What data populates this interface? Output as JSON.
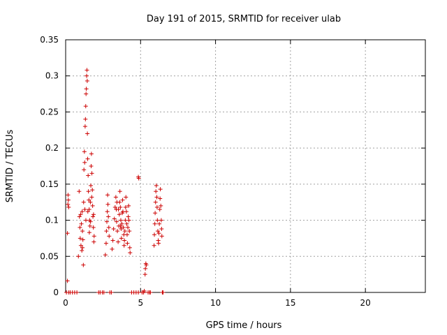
{
  "chart_data": {
    "type": "scatter",
    "title": "Day 191 of 2015, SRMTID for receiver ulab",
    "xlabel": "GPS time / hours",
    "ylabel": "SRMTID / TECUs",
    "xlim": [
      0,
      24
    ],
    "ylim": [
      0,
      0.35
    ],
    "xticks": [
      0,
      5,
      10,
      15,
      20
    ],
    "xtick_labels": [
      "0",
      "5",
      "10",
      "15",
      "20"
    ],
    "yticks": [
      0,
      0.05,
      0.1,
      0.15,
      0.2,
      0.25,
      0.3,
      0.35
    ],
    "ytick_labels": [
      "0",
      "0.05",
      "0.1",
      "0.15",
      "0.2",
      "0.25",
      "0.3",
      "0.35"
    ],
    "grid": true,
    "marker": "+",
    "series": [
      {
        "name": "SRMTID",
        "color": "#cc0000",
        "points": [
          [
            0.12,
            0.016
          ],
          [
            0.15,
            0.122
          ],
          [
            0.16,
            0.135
          ],
          [
            0.18,
            0.128
          ],
          [
            0.2,
            0.118
          ],
          [
            0.12,
            0.082
          ],
          [
            0.05,
            0
          ],
          [
            0.2,
            0
          ],
          [
            0.3,
            0
          ],
          [
            0.45,
            0
          ],
          [
            0.6,
            0
          ],
          [
            0.75,
            0
          ],
          [
            0.85,
            0.05
          ],
          [
            0.9,
            0.14
          ],
          [
            0.92,
            0.105
          ],
          [
            0.95,
            0.09
          ],
          [
            0.97,
            0.075
          ],
          [
            1.0,
            0.108
          ],
          [
            1.02,
            0.065
          ],
          [
            1.05,
            0.095
          ],
          [
            1.08,
            0.058
          ],
          [
            1.1,
            0.112
          ],
          [
            1.12,
            0.085
          ],
          [
            1.15,
            0.073
          ],
          [
            1.18,
            0.038
          ],
          [
            1.2,
            0.125
          ],
          [
            1.22,
            0.17
          ],
          [
            1.25,
            0.195
          ],
          [
            1.27,
            0.18
          ],
          [
            1.3,
            0.23
          ],
          [
            1.32,
            0.24
          ],
          [
            1.34,
            0.258
          ],
          [
            1.36,
            0.275
          ],
          [
            1.38,
            0.282
          ],
          [
            1.4,
            0.3
          ],
          [
            1.42,
            0.308
          ],
          [
            1.44,
            0.293
          ],
          [
            1.45,
            0.22
          ],
          [
            1.47,
            0.185
          ],
          [
            1.5,
            0.162
          ],
          [
            1.52,
            0.14
          ],
          [
            1.55,
            0.128
          ],
          [
            1.57,
            0.115
          ],
          [
            1.6,
            0.1
          ],
          [
            1.62,
            0.092
          ],
          [
            1.65,
            0.125
          ],
          [
            1.68,
            0.148
          ],
          [
            1.7,
            0.175
          ],
          [
            1.72,
            0.192
          ],
          [
            1.75,
            0.165
          ],
          [
            1.78,
            0.142
          ],
          [
            1.8,
            0.12
          ],
          [
            1.82,
            0.105
          ],
          [
            1.85,
            0.09
          ],
          [
            1.88,
            0.07
          ],
          [
            1.9,
            0.078
          ],
          [
            1.12,
            0.062
          ],
          [
            1.28,
            0.115
          ],
          [
            1.35,
            0.1
          ],
          [
            1.48,
            0.112
          ],
          [
            1.58,
            0.083
          ],
          [
            1.66,
            0.098
          ],
          [
            1.74,
            0.132
          ],
          [
            1.86,
            0.108
          ],
          [
            2.2,
            0
          ],
          [
            2.3,
            0
          ],
          [
            2.45,
            0
          ],
          [
            2.55,
            0
          ],
          [
            2.95,
            0
          ],
          [
            3.05,
            0
          ],
          [
            2.65,
            0.052
          ],
          [
            2.7,
            0.068
          ],
          [
            2.72,
            0.085
          ],
          [
            2.75,
            0.098
          ],
          [
            2.78,
            0.112
          ],
          [
            2.8,
            0.135
          ],
          [
            2.82,
            0.122
          ],
          [
            2.85,
            0.105
          ],
          [
            2.88,
            0.09
          ],
          [
            2.9,
            0.078
          ],
          [
            3.1,
            0.06
          ],
          [
            3.15,
            0.072
          ],
          [
            3.2,
            0.088
          ],
          [
            3.25,
            0.102
          ],
          [
            3.3,
            0.118
          ],
          [
            3.35,
            0.132
          ],
          [
            3.38,
            0.115
          ],
          [
            3.4,
            0.098
          ],
          [
            3.45,
            0.085
          ],
          [
            3.5,
            0.07
          ],
          [
            3.55,
            0.092
          ],
          [
            3.58,
            0.108
          ],
          [
            3.6,
            0.125
          ],
          [
            3.62,
            0.14
          ],
          [
            3.65,
            0.118
          ],
          [
            3.68,
            0.1
          ],
          [
            3.7,
            0.088
          ],
          [
            3.72,
            0.075
          ],
          [
            3.75,
            0.095
          ],
          [
            3.78,
            0.11
          ],
          [
            3.8,
            0.128
          ],
          [
            3.82,
            0.112
          ],
          [
            3.85,
            0.09
          ],
          [
            3.88,
            0.08
          ],
          [
            3.9,
            0.065
          ],
          [
            3.92,
            0.072
          ],
          [
            3.95,
            0.085
          ],
          [
            3.98,
            0.1
          ],
          [
            4.0,
            0.118
          ],
          [
            4.02,
            0.132
          ],
          [
            4.05,
            0.112
          ],
          [
            4.08,
            0.095
          ],
          [
            4.1,
            0.08
          ],
          [
            4.12,
            0.068
          ],
          [
            4.15,
            0.09
          ],
          [
            4.18,
            0.105
          ],
          [
            4.2,
            0.12
          ],
          [
            4.22,
            0.1
          ],
          [
            4.25,
            0.085
          ],
          [
            4.28,
            0.062
          ],
          [
            4.3,
            0.055
          ],
          [
            3.42,
            0.125
          ],
          [
            3.52,
            0.115
          ],
          [
            3.66,
            0.092
          ],
          [
            4.4,
            0
          ],
          [
            4.55,
            0
          ],
          [
            4.7,
            0
          ],
          [
            4.85,
            0
          ],
          [
            4.85,
            0.16
          ],
          [
            4.88,
            0.158
          ],
          [
            5.1,
            0
          ],
          [
            5.2,
            0
          ],
          [
            5.25,
            0.002
          ],
          [
            5.3,
            0.025
          ],
          [
            5.32,
            0.033
          ],
          [
            5.35,
            0.04
          ],
          [
            5.38,
            0.038
          ],
          [
            5.5,
            0
          ],
          [
            5.6,
            0
          ],
          [
            5.65,
            0
          ],
          [
            5.9,
            0.065
          ],
          [
            5.92,
            0.08
          ],
          [
            5.95,
            0.095
          ],
          [
            5.97,
            0.11
          ],
          [
            6.0,
            0.125
          ],
          [
            6.02,
            0.14
          ],
          [
            6.05,
            0.148
          ],
          [
            6.08,
            0.132
          ],
          [
            6.1,
            0.118
          ],
          [
            6.12,
            0.1
          ],
          [
            6.15,
            0.085
          ],
          [
            6.18,
            0.072
          ],
          [
            6.2,
            0.068
          ],
          [
            6.22,
            0.082
          ],
          [
            6.25,
            0.095
          ],
          [
            6.28,
            0.115
          ],
          [
            6.3,
            0.13
          ],
          [
            6.32,
            0.143
          ],
          [
            6.35,
            0.12
          ],
          [
            6.38,
            0.1
          ],
          [
            6.4,
            0.088
          ],
          [
            6.42,
            0.078
          ],
          [
            6.45,
            0
          ],
          [
            6.5,
            0
          ]
        ]
      }
    ]
  }
}
